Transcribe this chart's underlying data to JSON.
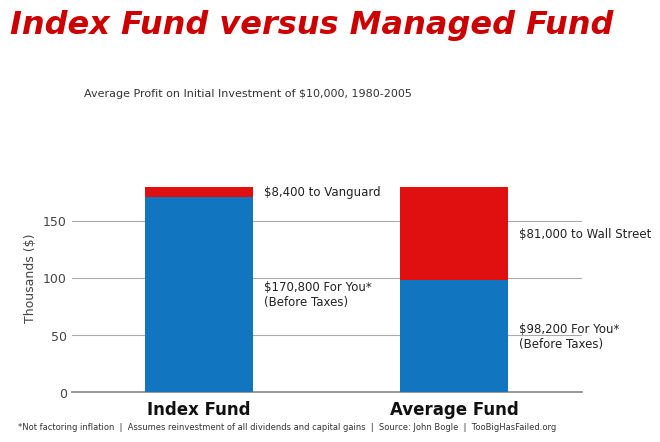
{
  "title": "Index Fund versus Managed Fund",
  "subtitle": "Average Profit on Initial Investment of $10,000, 1980-2005",
  "title_color": "#cc0000",
  "subtitle_color": "#333333",
  "categories": [
    "Index Fund",
    "Average Fund"
  ],
  "blue_values": [
    170.8,
    98.2
  ],
  "red_values": [
    8.4,
    81.0
  ],
  "blue_color": "#1275bf",
  "red_color": "#e01010",
  "blue_labels": [
    "$170,800 For You*\n(Before Taxes)",
    "$98,200 For You*\n(Before Taxes)"
  ],
  "red_labels": [
    "$8,400 to Vanguard",
    "$81,000 to Wall Street"
  ],
  "ylabel": "Thousands ($)",
  "ylim": [
    0,
    200
  ],
  "yticks": [
    0,
    50,
    100,
    150
  ],
  "footnote": "*Not factoring inflation  |  Assumes reinvestment of all dividends and capital gains  |  Source: John Bogle  |  TooBigHasFailed.org",
  "background_color": "#ffffff",
  "grid_color": "#aaaaaa",
  "bar_positions": [
    1,
    3
  ],
  "bar_width": 0.85,
  "xlim": [
    0,
    4
  ]
}
